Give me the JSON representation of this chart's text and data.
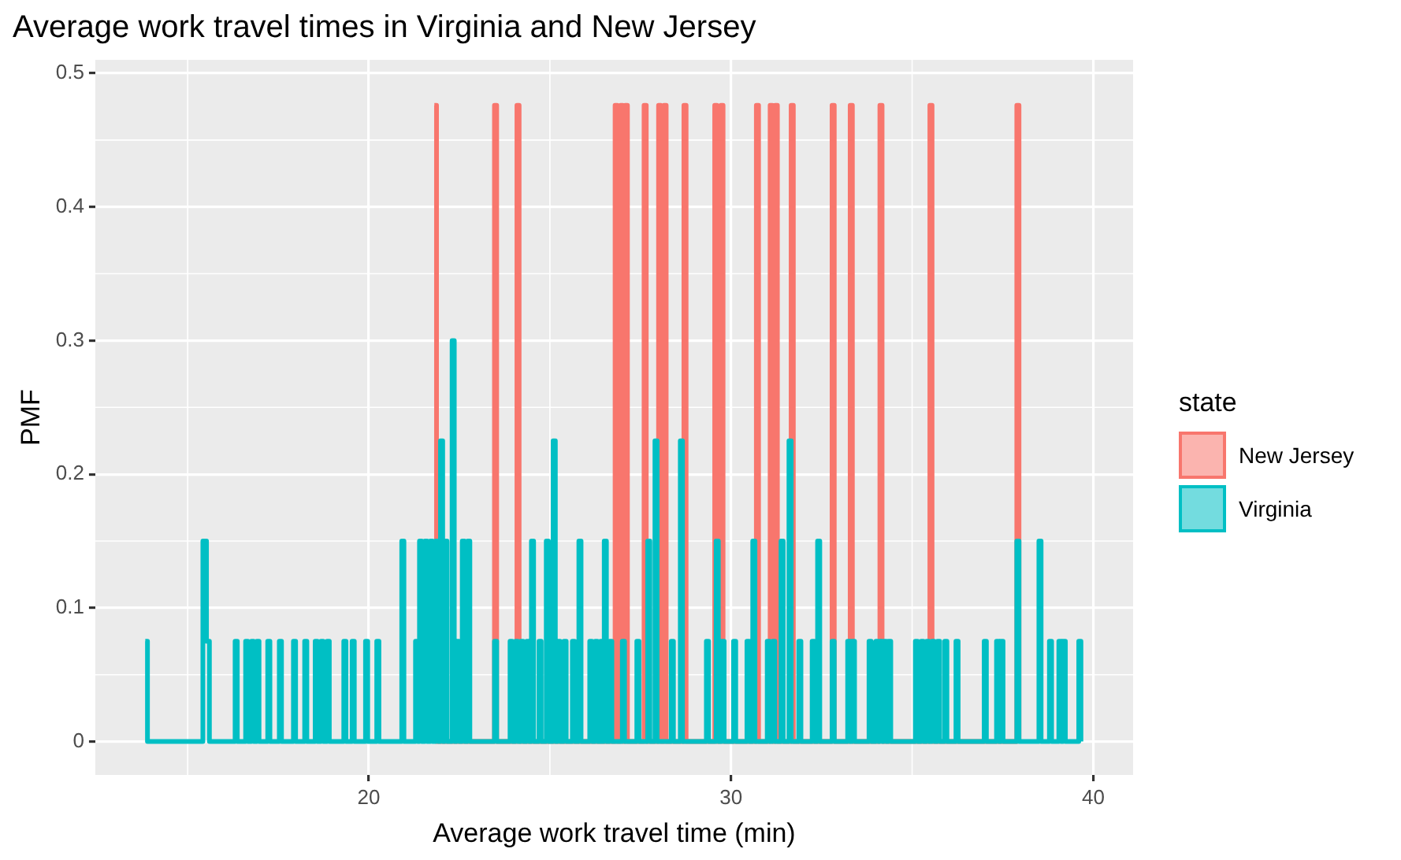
{
  "chart_data": {
    "type": "step",
    "title": "Average work travel times in Virginia and New Jersey",
    "xlabel": "Average work travel time (min)",
    "ylabel": "PMF",
    "legend_title": "state",
    "legend": "right",
    "grid": true,
    "xlim": [
      12.45,
      41.1
    ],
    "xticks": [
      20,
      30,
      40
    ],
    "ylim": [
      -0.025,
      0.51
    ],
    "yticks": [
      0.0,
      0.1,
      0.2,
      0.3,
      0.4,
      0.5
    ],
    "series": [
      {
        "name": "New Jersey",
        "color": "#f8766d",
        "x": [
          21.81,
          21.87,
          23.47,
          23.53,
          24.09,
          24.15,
          26.8,
          26.86,
          26.95,
          27.01,
          27.08,
          27.14,
          27.6,
          27.66,
          28.0,
          28.06,
          28.15,
          28.21,
          28.7,
          28.76,
          29.55,
          29.61,
          29.72,
          29.78,
          30.7,
          30.76,
          31.08,
          31.14,
          31.22,
          31.28,
          31.66,
          31.72,
          32.79,
          32.85,
          33.29,
          33.35,
          34.11,
          34.17,
          35.49,
          35.55,
          37.89,
          37.95
        ],
        "values": [
          0.476,
          0,
          0.476,
          0,
          0.476,
          0,
          0.476,
          0,
          0.476,
          0,
          0.476,
          0,
          0.476,
          0,
          0.476,
          0,
          0.476,
          0,
          0.476,
          0,
          0.476,
          0,
          0.476,
          0,
          0.476,
          0,
          0.476,
          0,
          0.476,
          0,
          0.476,
          0,
          0.476,
          0,
          0.476,
          0,
          0.476,
          0,
          0.476,
          0,
          0.476,
          0
        ]
      },
      {
        "name": "Virginia",
        "color": "#00bfc4",
        "x": [
          13.83,
          13.89,
          15.42,
          15.52,
          15.6,
          16.31,
          16.37,
          16.6,
          16.66,
          16.76,
          16.82,
          16.91,
          16.97,
          17.21,
          17.27,
          17.53,
          17.59,
          17.92,
          17.98,
          18.23,
          18.29,
          18.52,
          18.58,
          18.68,
          18.74,
          18.85,
          18.91,
          19.31,
          19.37,
          19.54,
          19.6,
          19.91,
          19.97,
          20.22,
          20.28,
          20.91,
          20.97,
          21.29,
          21.35,
          21.4,
          21.46,
          21.55,
          21.61,
          21.7,
          21.76,
          21.85,
          21.91,
          21.98,
          22.04,
          22.1,
          22.16,
          22.3,
          22.36,
          22.43,
          22.49,
          22.58,
          22.64,
          22.73,
          22.79,
          23.47,
          23.53,
          23.9,
          23.96,
          24.05,
          24.11,
          24.2,
          24.26,
          24.36,
          24.42,
          24.49,
          24.55,
          24.7,
          24.76,
          24.9,
          24.96,
          25.09,
          25.15,
          25.22,
          25.28,
          25.39,
          25.45,
          25.62,
          25.68,
          25.8,
          25.86,
          26.1,
          26.16,
          26.25,
          26.31,
          26.4,
          26.46,
          26.5,
          26.56,
          26.65,
          26.71,
          27.0,
          27.06,
          27.4,
          27.46,
          27.7,
          27.76,
          27.9,
          27.96,
          28.35,
          28.41,
          28.6,
          28.66,
          29.32,
          29.38,
          29.59,
          29.65,
          29.75,
          29.81,
          30.07,
          30.13,
          30.44,
          30.5,
          30.6,
          30.66,
          31.0,
          31.06,
          31.15,
          31.21,
          31.38,
          31.44,
          31.6,
          31.66,
          31.87,
          31.93,
          32.24,
          32.3,
          32.39,
          32.45,
          32.79,
          32.85,
          33.22,
          33.28,
          33.35,
          33.41,
          33.81,
          33.87,
          34.0,
          34.06,
          34.11,
          34.17,
          34.22,
          34.28,
          34.35,
          34.41,
          35.09,
          35.15,
          35.25,
          35.31,
          35.4,
          35.46,
          35.55,
          35.61,
          35.7,
          35.76,
          35.9,
          35.96,
          36.21,
          36.27,
          36.99,
          37.05,
          37.33,
          37.39,
          37.45,
          37.51,
          37.89,
          37.95,
          38.5,
          38.56,
          38.79,
          38.85,
          39.05,
          39.11,
          39.17,
          39.23,
          39.6,
          39.66
        ],
        "values": [
          0.075,
          0,
          0.15,
          0.075,
          0,
          0.075,
          0,
          0.075,
          0,
          0.075,
          0,
          0.075,
          0,
          0.075,
          0,
          0.075,
          0,
          0.075,
          0,
          0.075,
          0,
          0.075,
          0,
          0.075,
          0,
          0.075,
          0,
          0.075,
          0,
          0.075,
          0,
          0.075,
          0,
          0.075,
          0,
          0.15,
          0,
          0.075,
          0,
          0.15,
          0,
          0.15,
          0,
          0.15,
          0,
          0.15,
          0,
          0.225,
          0,
          0.15,
          0,
          0.3,
          0,
          0.075,
          0,
          0.15,
          0,
          0.15,
          0,
          0.075,
          0,
          0.075,
          0,
          0.075,
          0,
          0.075,
          0,
          0.075,
          0,
          0.15,
          0,
          0.075,
          0,
          0.15,
          0,
          0.225,
          0,
          0.075,
          0,
          0.075,
          0,
          0.075,
          0,
          0.15,
          0,
          0.075,
          0,
          0.075,
          0,
          0.075,
          0,
          0.15,
          0,
          0.075,
          0,
          0.075,
          0,
          0.075,
          0,
          0.15,
          0,
          0.225,
          0,
          0.075,
          0,
          0.225,
          0,
          0.075,
          0,
          0.15,
          0,
          0.075,
          0,
          0.075,
          0,
          0.075,
          0,
          0.15,
          0,
          0.075,
          0,
          0.075,
          0,
          0.15,
          0,
          0.225,
          0,
          0.075,
          0,
          0.075,
          0,
          0.15,
          0,
          0.075,
          0,
          0.075,
          0,
          0.075,
          0,
          0.075,
          0,
          0.075,
          0,
          0.075,
          0,
          0.075,
          0,
          0.075,
          0,
          0.075,
          0,
          0.075,
          0,
          0.075,
          0,
          0.075,
          0,
          0.075,
          0,
          0.075,
          0,
          0.075,
          0,
          0.075,
          0,
          0.075,
          0,
          0.075,
          0,
          0.15,
          0,
          0.15,
          0,
          0.075,
          0,
          0.075,
          0,
          0.075,
          0,
          0.075,
          0
        ]
      }
    ]
  }
}
